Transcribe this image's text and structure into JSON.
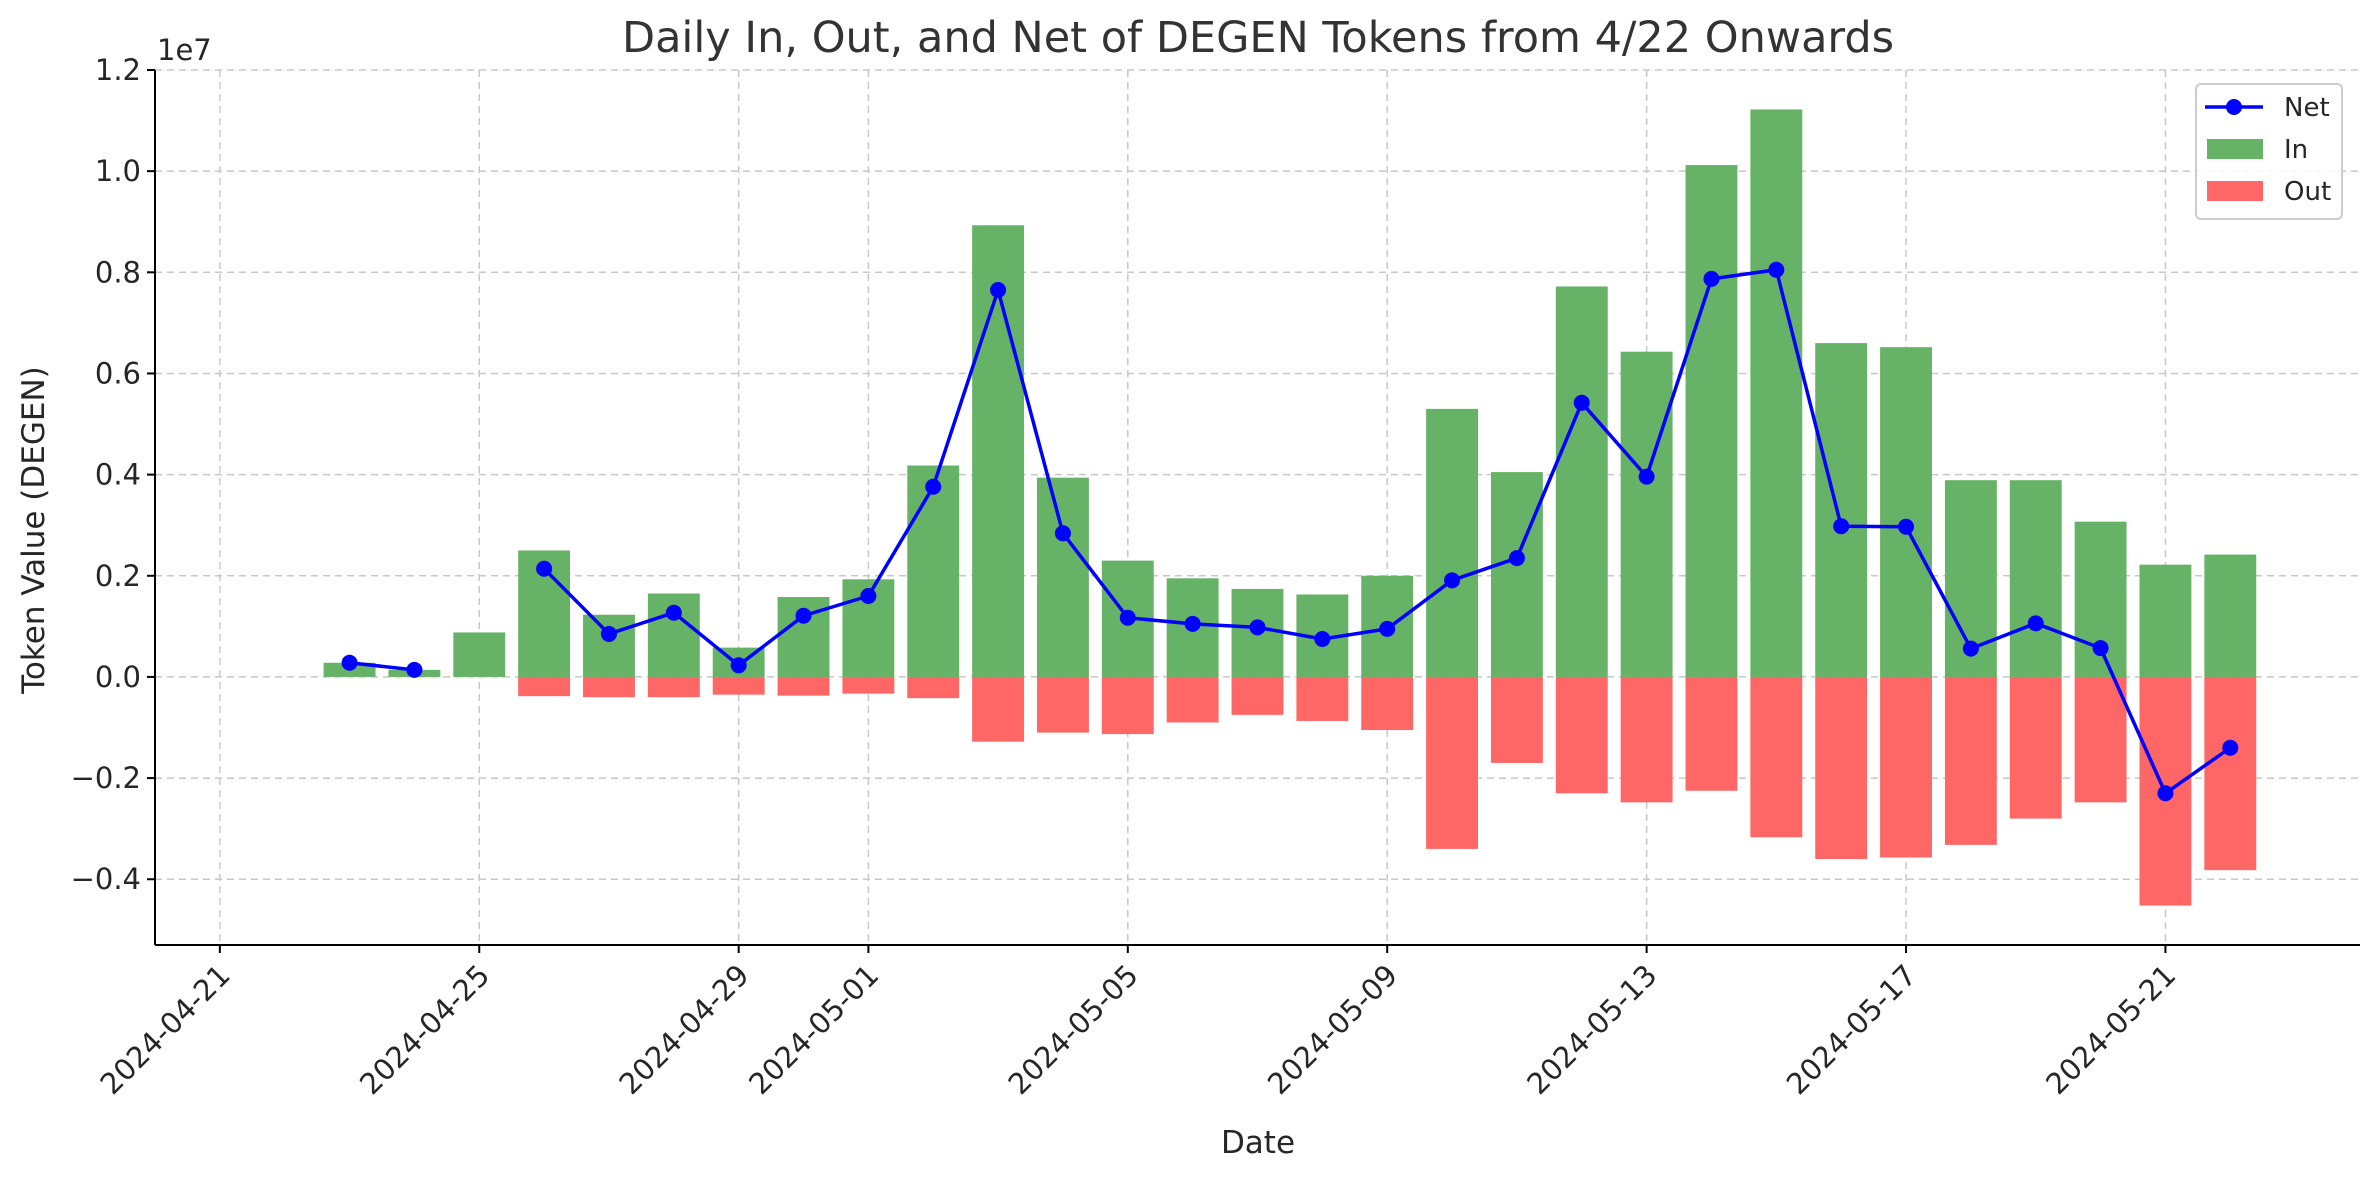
{
  "chart_data": {
    "type": "bar",
    "title": "Daily In, Out, and Net of DEGEN Tokens from 4/22 Onwards",
    "xlabel": "Date",
    "ylabel": "Token Value (DEGEN)",
    "y_scale_label": "1e7",
    "y_scale": 10000000,
    "ylim": [
      -0.53,
      1.2
    ],
    "y_ticks": [
      -0.4,
      -0.2,
      0.0,
      0.2,
      0.4,
      0.6,
      0.8,
      1.0,
      1.2
    ],
    "y_tick_labels": [
      "−0.4",
      "−0.2",
      "0.0",
      "0.2",
      "0.4",
      "0.6",
      "0.8",
      "1.0",
      "1.2"
    ],
    "x_ticks": [
      "2024-04-21",
      "2024-04-25",
      "2024-04-29",
      "2024-05-01",
      "2024-05-05",
      "2024-05-09",
      "2024-05-13",
      "2024-05-17",
      "2024-05-21"
    ],
    "x_range": [
      "2024-04-20",
      "2024-05-24"
    ],
    "grid": true,
    "legend_position": "top-right",
    "dates": [
      "2024-04-23",
      "2024-04-24",
      "2024-04-25",
      "2024-04-26",
      "2024-04-27",
      "2024-04-28",
      "2024-04-29",
      "2024-04-30",
      "2024-05-01",
      "2024-05-02",
      "2024-05-03",
      "2024-05-04",
      "2024-05-05",
      "2024-05-06",
      "2024-05-07",
      "2024-05-08",
      "2024-05-09",
      "2024-05-10",
      "2024-05-11",
      "2024-05-12",
      "2024-05-13",
      "2024-05-14",
      "2024-05-15",
      "2024-05-16",
      "2024-05-17",
      "2024-05-18",
      "2024-05-19",
      "2024-05-20",
      "2024-05-21",
      "2024-05-22"
    ],
    "series": [
      {
        "name": "In",
        "kind": "bar",
        "color": "#66b266",
        "values": [
          0.028,
          0.014,
          0.088,
          0.25,
          0.123,
          0.165,
          0.058,
          0.158,
          0.193,
          0.418,
          0.893,
          0.394,
          0.23,
          0.195,
          0.174,
          0.163,
          0.2,
          0.53,
          0.405,
          0.772,
          0.643,
          1.012,
          1.122,
          0.66,
          0.652,
          0.389,
          0.389,
          0.307,
          0.222,
          0.242
        ]
      },
      {
        "name": "Out",
        "kind": "bar",
        "color": "#ff6666",
        "values": [
          0.0,
          0.0,
          0.0,
          -0.038,
          -0.04,
          -0.04,
          -0.035,
          -0.037,
          -0.033,
          -0.042,
          -0.128,
          -0.11,
          -0.113,
          -0.09,
          -0.075,
          -0.087,
          -0.105,
          -0.34,
          -0.17,
          -0.23,
          -0.248,
          -0.225,
          -0.317,
          -0.36,
          -0.357,
          -0.332,
          -0.28,
          -0.248,
          -0.452,
          -0.382
        ]
      },
      {
        "name": "Net",
        "kind": "line",
        "color": "#0000ff",
        "values": [
          0.028,
          0.014,
          null,
          0.214,
          0.085,
          0.127,
          0.023,
          0.121,
          0.16,
          0.376,
          0.765,
          0.284,
          0.117,
          0.105,
          0.098,
          0.075,
          0.095,
          0.191,
          0.235,
          0.542,
          0.396,
          0.787,
          0.805,
          0.298,
          0.297,
          0.056,
          0.106,
          0.057,
          -0.23,
          -0.14
        ]
      }
    ]
  }
}
